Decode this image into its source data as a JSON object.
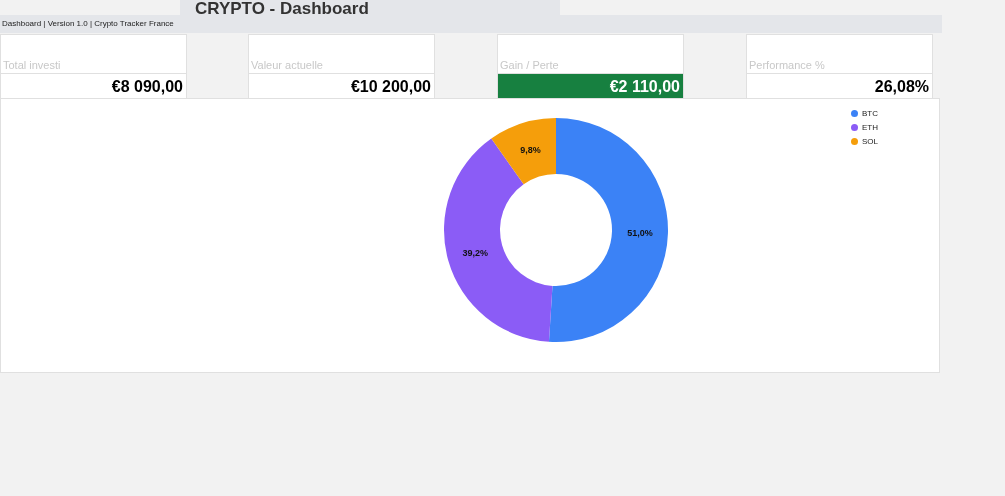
{
  "chart_data": {
    "type": "donut",
    "title": "CRYPTO - Dashboard",
    "subtitle": "Dashboard | Version 1.0 | Crypto Tracker France",
    "annotations": [
      "Total investi",
      "€8 090,00",
      "Valeur actuelle",
      "€10 200,00",
      "Gain / Perte",
      "€2 110,00",
      "Performance %",
      "26,08%"
    ],
    "categories": [
      "BTC",
      "ETH",
      "SOL"
    ],
    "values": [
      51.0,
      39.2,
      9.8
    ],
    "colors": [
      "#3b82f6",
      "#8b5cf6",
      "#f59e0b"
    ],
    "value_labels": [
      "51,0%",
      "39,2%",
      "9,8%"
    ],
    "legend": "top right"
  }
}
